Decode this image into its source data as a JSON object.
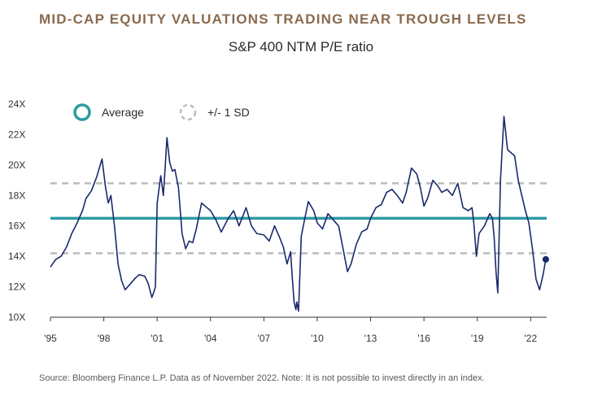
{
  "title": "MID-CAP EQUITY VALUATIONS TRADING NEAR TROUGH LEVELS",
  "subtitle": "S&P 400 NTM P/E ratio",
  "source": "Source: Bloomberg Finance L.P. Data as of November 2022. Note: It is not possible to invest directly in an index.",
  "colors": {
    "line": "#1a2a6c",
    "average": "#2e9aa5",
    "sd": "#bbbbbb",
    "title": "#8a6a4e"
  },
  "chart_data": {
    "type": "line",
    "title": "S&P 400 NTM P/E ratio",
    "xlabel": "",
    "ylabel": "",
    "xlim": [
      1995,
      2022.9
    ],
    "ylim": [
      10,
      24
    ],
    "grid": false,
    "legend": {
      "placement": "top-left",
      "entries": [
        "Average",
        "+/- 1 SD"
      ]
    },
    "x_ticks": [
      1995,
      1998,
      2001,
      2004,
      2007,
      2010,
      2013,
      2016,
      2019,
      2022
    ],
    "x_tick_labels": [
      "'95",
      "'98",
      "'01",
      "'04",
      "'07",
      "'10",
      "'13",
      "'16",
      "'19",
      "'22"
    ],
    "y_ticks": [
      10,
      12,
      14,
      16,
      18,
      20,
      22,
      24
    ],
    "y_tick_labels": [
      "10X",
      "12X",
      "14X",
      "16X",
      "18X",
      "20X",
      "22X",
      "24X"
    ],
    "average": 16.5,
    "plus_1sd": 18.8,
    "minus_1sd": 14.2,
    "last_point": {
      "x": 2022.85,
      "y": 13.8
    },
    "series": [
      {
        "name": "S&P 400 NTM P/E",
        "x": [
          1995.0,
          1995.3,
          1995.6,
          1995.9,
          1996.2,
          1996.5,
          1996.8,
          1997.0,
          1997.3,
          1997.6,
          1997.9,
          1998.1,
          1998.25,
          1998.4,
          1998.6,
          1998.8,
          1999.0,
          1999.2,
          1999.5,
          1999.8,
          2000.0,
          2000.3,
          2000.5,
          2000.7,
          2000.8,
          2000.9,
          2001.0,
          2001.2,
          2001.35,
          2001.45,
          2001.55,
          2001.7,
          2001.85,
          2002.0,
          2002.2,
          2002.4,
          2002.6,
          2002.8,
          2003.0,
          2003.2,
          2003.5,
          2003.8,
          2004.0,
          2004.3,
          2004.6,
          2005.0,
          2005.3,
          2005.6,
          2006.0,
          2006.3,
          2006.6,
          2007.0,
          2007.3,
          2007.6,
          2007.9,
          2008.1,
          2008.3,
          2008.5,
          2008.6,
          2008.7,
          2008.8,
          2008.85,
          2008.95,
          2009.1,
          2009.3,
          2009.5,
          2009.8,
          2010.0,
          2010.3,
          2010.6,
          2010.9,
          2011.2,
          2011.5,
          2011.7,
          2011.9,
          2012.2,
          2012.5,
          2012.8,
          2013.0,
          2013.3,
          2013.6,
          2013.9,
          2014.2,
          2014.5,
          2014.8,
          2015.0,
          2015.3,
          2015.6,
          2015.8,
          2016.0,
          2016.2,
          2016.5,
          2016.8,
          2017.0,
          2017.3,
          2017.6,
          2017.9,
          2018.2,
          2018.5,
          2018.7,
          2018.8,
          2018.95,
          2019.1,
          2019.4,
          2019.7,
          2019.85,
          2019.95,
          2020.05,
          2020.15,
          2020.3,
          2020.5,
          2020.7,
          2020.9,
          2021.1,
          2021.3,
          2021.5,
          2021.7,
          2021.9,
          2022.1,
          2022.3,
          2022.5,
          2022.7,
          2022.85
        ],
        "values": [
          13.3,
          13.8,
          14.0,
          14.6,
          15.5,
          16.2,
          17.0,
          17.8,
          18.3,
          19.2,
          20.4,
          18.5,
          17.5,
          18.0,
          16.0,
          13.5,
          12.4,
          11.8,
          12.2,
          12.6,
          12.8,
          12.7,
          12.2,
          11.3,
          11.6,
          12.0,
          17.5,
          19.3,
          18.0,
          19.8,
          21.8,
          20.2,
          19.6,
          19.7,
          18.5,
          15.5,
          14.5,
          15.0,
          14.9,
          15.8,
          17.5,
          17.2,
          17.0,
          16.4,
          15.6,
          16.5,
          17.0,
          16.0,
          17.2,
          16.0,
          15.5,
          15.4,
          15.0,
          16.0,
          15.2,
          14.6,
          13.5,
          14.3,
          12.6,
          11.0,
          10.5,
          11.0,
          10.4,
          15.3,
          16.5,
          17.6,
          17.0,
          16.2,
          15.8,
          16.8,
          16.4,
          16.0,
          14.2,
          13.0,
          13.5,
          14.8,
          15.6,
          15.8,
          16.5,
          17.2,
          17.4,
          18.2,
          18.4,
          18.0,
          17.5,
          18.2,
          19.8,
          19.4,
          18.5,
          17.3,
          17.8,
          19.0,
          18.6,
          18.2,
          18.4,
          18.0,
          18.8,
          17.2,
          17.0,
          17.2,
          16.2,
          14.0,
          15.5,
          16.0,
          16.8,
          16.5,
          15.2,
          13.0,
          11.6,
          19.0,
          23.2,
          21.0,
          20.8,
          20.6,
          19.0,
          18.0,
          17.0,
          16.2,
          14.5,
          12.5,
          11.8,
          12.8,
          13.8
        ]
      }
    ]
  }
}
